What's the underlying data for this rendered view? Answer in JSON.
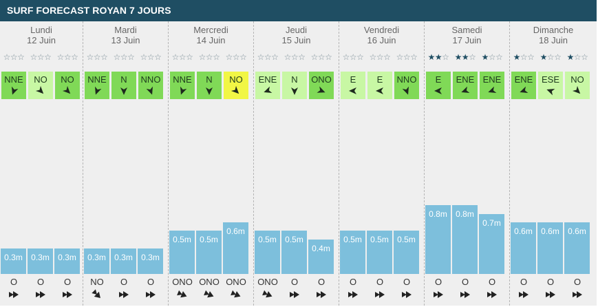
{
  "title": "SURF FORECAST ROYAN 7 JOURS",
  "colors": {
    "header": "#1f4e63",
    "wind_light": "#c8f7a4",
    "wind_medium": "#80d957",
    "wind_yellow": "#f1f645",
    "swell_bar": "#7dbfdc",
    "star_filled": "#1f4e63"
  },
  "days": [
    {
      "name": "Lundi",
      "date": "12 Juin",
      "slots": [
        {
          "stars": 0,
          "wind": "NNE",
          "wind_color": "medium",
          "wind_deg": 200,
          "height": "0.3m",
          "h": 0.3,
          "swell_dir": "O",
          "swell_deg": 0
        },
        {
          "stars": 0,
          "wind": "NO",
          "wind_color": "light",
          "wind_deg": 135,
          "height": "0.3m",
          "h": 0.3,
          "swell_dir": "O",
          "swell_deg": 0
        },
        {
          "stars": 0,
          "wind": "NO",
          "wind_color": "medium",
          "wind_deg": 135,
          "height": "0.3m",
          "h": 0.3,
          "swell_dir": "O",
          "swell_deg": 0
        }
      ]
    },
    {
      "name": "Mardi",
      "date": "13 Juin",
      "slots": [
        {
          "stars": 0,
          "wind": "NNE",
          "wind_color": "medium",
          "wind_deg": 200,
          "height": "0.3m",
          "h": 0.3,
          "swell_dir": "NO",
          "swell_deg": 45
        },
        {
          "stars": 0,
          "wind": "N",
          "wind_color": "medium",
          "wind_deg": 180,
          "height": "0.3m",
          "h": 0.3,
          "swell_dir": "O",
          "swell_deg": 0
        },
        {
          "stars": 0,
          "wind": "NNO",
          "wind_color": "medium",
          "wind_deg": 160,
          "height": "0.3m",
          "h": 0.3,
          "swell_dir": "O",
          "swell_deg": 0
        }
      ]
    },
    {
      "name": "Mercredi",
      "date": "14 Juin",
      "slots": [
        {
          "stars": 0,
          "wind": "NNE",
          "wind_color": "medium",
          "wind_deg": 200,
          "height": "0.5m",
          "h": 0.5,
          "swell_dir": "ONO",
          "swell_deg": 22
        },
        {
          "stars": 0,
          "wind": "N",
          "wind_color": "medium",
          "wind_deg": 180,
          "height": "0.5m",
          "h": 0.5,
          "swell_dir": "ONO",
          "swell_deg": 22
        },
        {
          "stars": 0,
          "wind": "NO",
          "wind_color": "yellow",
          "wind_deg": 135,
          "height": "0.6m",
          "h": 0.6,
          "swell_dir": "ONO",
          "swell_deg": 22
        }
      ]
    },
    {
      "name": "Jeudi",
      "date": "15 Juin",
      "slots": [
        {
          "stars": 0,
          "wind": "ENE",
          "wind_color": "light",
          "wind_deg": 250,
          "height": "0.5m",
          "h": 0.5,
          "swell_dir": "ONO",
          "swell_deg": 22
        },
        {
          "stars": 0,
          "wind": "N",
          "wind_color": "light",
          "wind_deg": 180,
          "height": "0.5m",
          "h": 0.5,
          "swell_dir": "O",
          "swell_deg": 0
        },
        {
          "stars": 0,
          "wind": "ONO",
          "wind_color": "medium",
          "wind_deg": 112,
          "height": "0.4m",
          "h": 0.4,
          "swell_dir": "O",
          "swell_deg": 0
        }
      ]
    },
    {
      "name": "Vendredi",
      "date": "16 Juin",
      "slots": [
        {
          "stars": 0,
          "wind": "E",
          "wind_color": "light",
          "wind_deg": 270,
          "height": "0.5m",
          "h": 0.5,
          "swell_dir": "O",
          "swell_deg": 0
        },
        {
          "stars": 0,
          "wind": "E",
          "wind_color": "light",
          "wind_deg": 270,
          "height": "0.5m",
          "h": 0.5,
          "swell_dir": "O",
          "swell_deg": 0
        },
        {
          "stars": 0,
          "wind": "NNO",
          "wind_color": "medium",
          "wind_deg": 160,
          "height": "0.5m",
          "h": 0.5,
          "swell_dir": "O",
          "swell_deg": 0
        }
      ]
    },
    {
      "name": "Samedi",
      "date": "17 Juin",
      "slots": [
        {
          "stars": 2,
          "wind": "E",
          "wind_color": "medium",
          "wind_deg": 270,
          "height": "0.8m",
          "h": 0.8,
          "swell_dir": "O",
          "swell_deg": 0
        },
        {
          "stars": 2,
          "wind": "ENE",
          "wind_color": "medium",
          "wind_deg": 250,
          "height": "0.8m",
          "h": 0.8,
          "swell_dir": "O",
          "swell_deg": 0
        },
        {
          "stars": 1,
          "wind": "ENE",
          "wind_color": "medium",
          "wind_deg": 250,
          "height": "0.7m",
          "h": 0.7,
          "swell_dir": "O",
          "swell_deg": 0
        }
      ]
    },
    {
      "name": "Dimanche",
      "date": "18 Juin",
      "slots": [
        {
          "stars": 1,
          "wind": "ENE",
          "wind_color": "medium",
          "wind_deg": 250,
          "height": "0.6m",
          "h": 0.6,
          "swell_dir": "O",
          "swell_deg": 0
        },
        {
          "stars": 1,
          "wind": "ESE",
          "wind_color": "light",
          "wind_deg": 290,
          "height": "0.6m",
          "h": 0.6,
          "swell_dir": "O",
          "swell_deg": 0
        },
        {
          "stars": 1,
          "wind": "NO",
          "wind_color": "light",
          "wind_deg": 135,
          "height": "0.6m",
          "h": 0.6,
          "swell_dir": "O",
          "swell_deg": 0
        }
      ]
    }
  ]
}
